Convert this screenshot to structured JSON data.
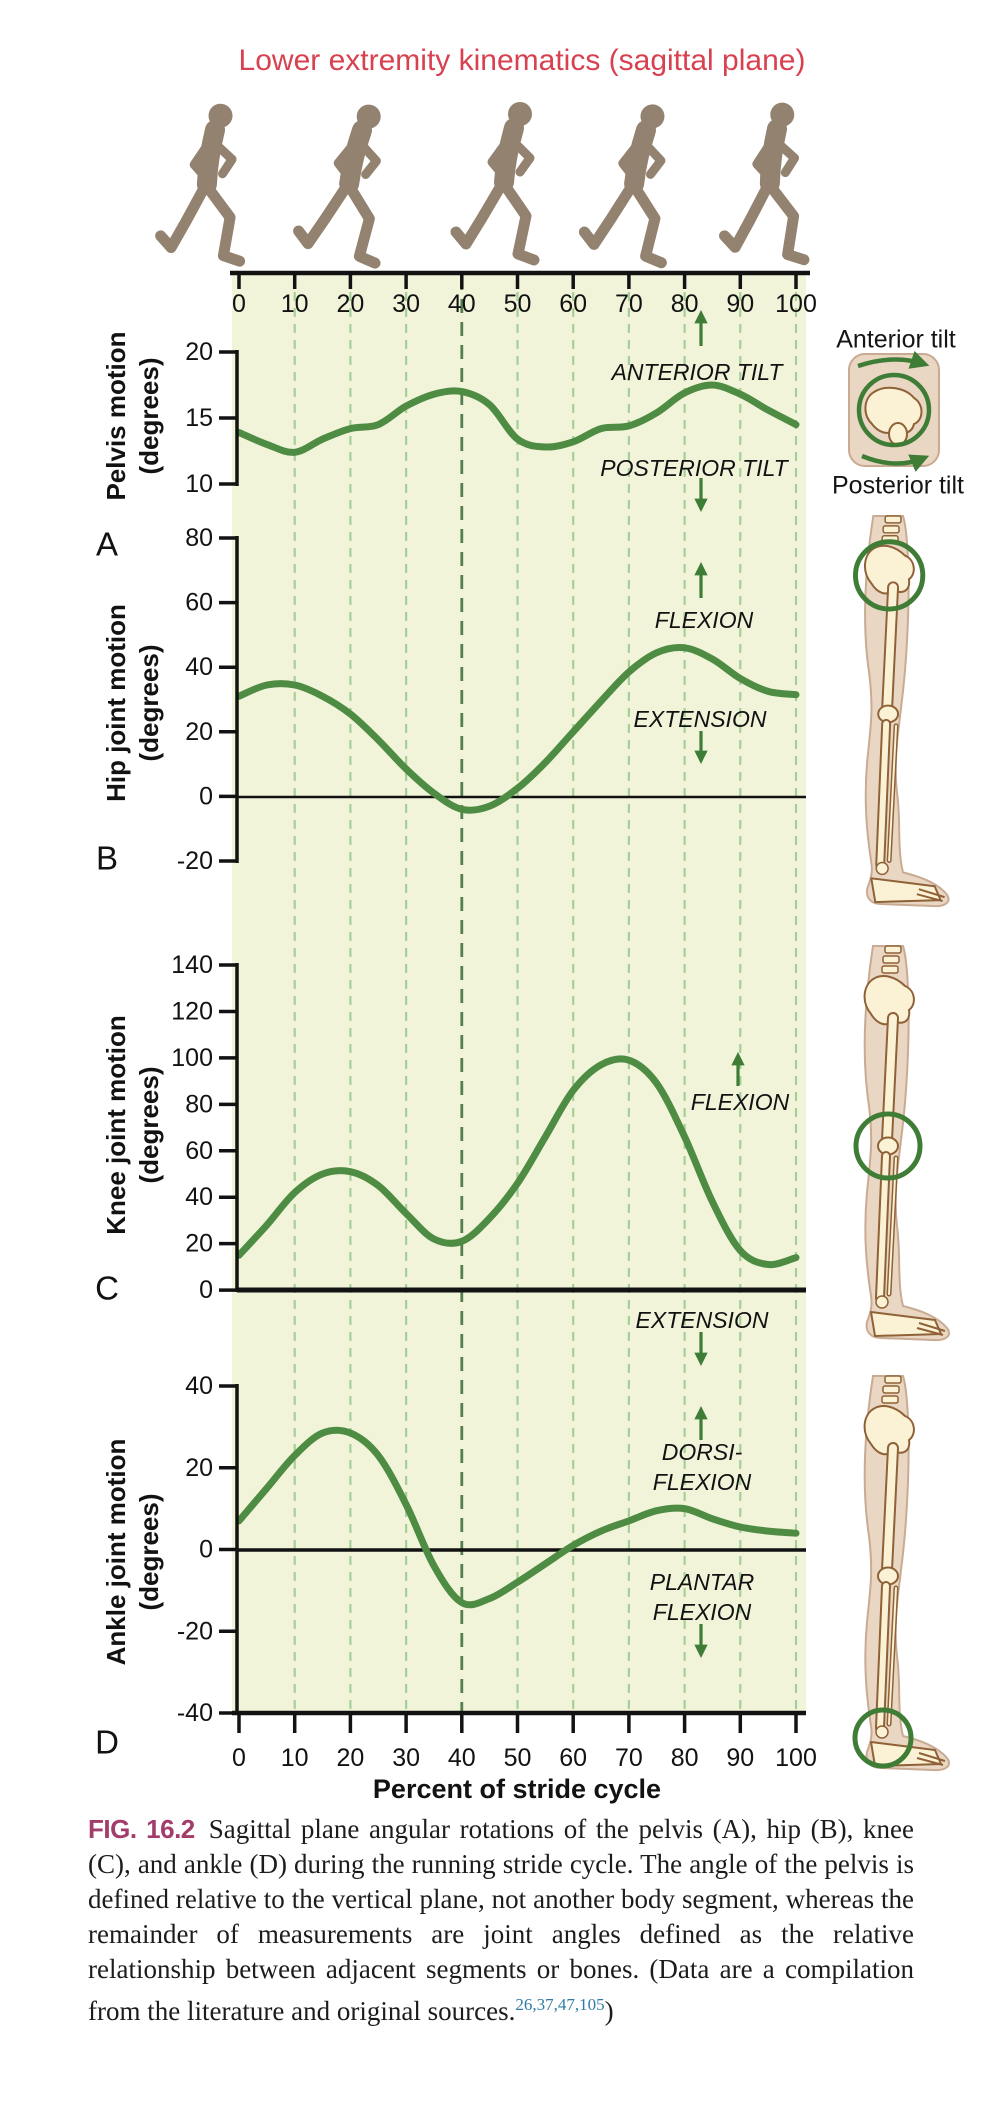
{
  "title": "Lower extremity kinematics (sagittal plane)",
  "x_axis": {
    "label": "Percent of stride cycle",
    "ticks": [
      0,
      10,
      20,
      30,
      40,
      50,
      60,
      70,
      80,
      90,
      100
    ]
  },
  "right_column": {
    "anterior_label": "Anterior tilt",
    "posterior_label": "Posterior tilt",
    "illustrations": [
      "pelvis-tilt-diagram",
      "leg-hip-circled",
      "leg-knee-circled",
      "leg-ankle-circled"
    ]
  },
  "caption": {
    "fig_label": "FIG. 16.2",
    "body": "Sagittal plane angular rotations of the pelvis (A), hip (B), knee (C), and ankle (D) during the running stride cycle. The angle of the pelvis is defined relative to the vertical plane, not another body segment, whereas the remainder of measurements are joint angles defined as the relative relationship between adjacent segments or bones. (Data are a compilation from the literature and original sources.",
    "references": "26,37,47,105",
    "close_paren": ")"
  },
  "colors": {
    "title_red": "#d8414f",
    "fig_label_magenta": "#a33b6b",
    "reference_blue": "#2f7ba6",
    "curve_green": "#4e8b43",
    "grid_light_green": "#a6cf97",
    "grid_dark_green": "#567f4e",
    "plot_background": "#f2f4da",
    "arrow_green": "#3f7d37",
    "skin_tone": "#e9d7c4",
    "bone_cream": "#fbf2d6",
    "bone_outline": "#8f6137",
    "runner_silhouette": "#93826f",
    "axis_black": "#121212"
  },
  "chart_data": [
    {
      "id": "pelvis",
      "type": "line",
      "panel_letter": "A",
      "y_label_lines": [
        "Pelvis motion",
        "(degrees)"
      ],
      "y_ticks": [
        20,
        15,
        10
      ],
      "ylim": [
        10,
        20
      ],
      "xlim": [
        0,
        100
      ],
      "x": [
        0,
        5,
        10,
        15,
        20,
        25,
        30,
        35,
        40,
        45,
        50,
        55,
        60,
        65,
        70,
        75,
        80,
        85,
        90,
        95,
        100
      ],
      "values": [
        13.9,
        13.0,
        12.4,
        13.4,
        14.2,
        14.5,
        15.9,
        16.8,
        17.0,
        16.0,
        13.4,
        12.8,
        13.2,
        14.2,
        14.4,
        15.4,
        16.9,
        17.5,
        16.8,
        15.6,
        14.5
      ],
      "annotations": [
        {
          "lines": [
            "ANTERIOR TILT"
          ],
          "direction": "up"
        },
        {
          "lines": [
            "POSTERIOR TILT"
          ],
          "direction": "down"
        }
      ]
    },
    {
      "id": "hip",
      "type": "line",
      "panel_letter": "B",
      "y_label_lines": [
        "Hip joint motion",
        "(degrees)"
      ],
      "y_ticks": [
        80,
        60,
        40,
        20,
        0,
        -20
      ],
      "ylim": [
        -20,
        80
      ],
      "xlim": [
        0,
        100
      ],
      "x": [
        0,
        5,
        10,
        15,
        20,
        25,
        30,
        35,
        40,
        45,
        50,
        55,
        60,
        65,
        70,
        75,
        80,
        85,
        90,
        95,
        100
      ],
      "values": [
        31,
        34.5,
        34.5,
        31,
        25.5,
        17.5,
        8.5,
        1,
        -4,
        -3,
        2.5,
        10.5,
        20,
        29.5,
        38.5,
        44.5,
        46,
        42.5,
        36.5,
        32.5,
        31.5
      ],
      "annotations": [
        {
          "lines": [
            "FLEXION"
          ],
          "direction": "up"
        },
        {
          "lines": [
            "EXTENSION"
          ],
          "direction": "down"
        }
      ]
    },
    {
      "id": "knee",
      "type": "line",
      "panel_letter": "C",
      "y_label_lines": [
        "Knee joint motion",
        "(degrees)"
      ],
      "y_ticks": [
        140,
        120,
        100,
        80,
        60,
        40,
        20,
        0
      ],
      "ylim": [
        0,
        140
      ],
      "xlim": [
        0,
        100
      ],
      "x": [
        0,
        5,
        10,
        15,
        20,
        25,
        30,
        35,
        40,
        45,
        50,
        55,
        60,
        65,
        70,
        75,
        80,
        85,
        90,
        95,
        100
      ],
      "values": [
        15,
        28,
        42,
        50,
        51,
        45,
        33,
        22,
        21,
        31,
        46,
        66,
        86,
        97,
        99,
        89,
        66,
        38,
        17,
        11,
        14
      ],
      "annotations": [
        {
          "lines": [
            "FLEXION"
          ],
          "direction": "up"
        },
        {
          "lines": [
            "EXTENSION"
          ],
          "direction": "down"
        }
      ]
    },
    {
      "id": "ankle",
      "type": "line",
      "panel_letter": "D",
      "y_label_lines": [
        "Ankle joint motion",
        "(degrees)"
      ],
      "y_ticks": [
        40,
        20,
        0,
        -20,
        -40
      ],
      "ylim": [
        -40,
        40
      ],
      "xlim": [
        0,
        100
      ],
      "x": [
        0,
        5,
        10,
        15,
        20,
        25,
        30,
        35,
        40,
        45,
        50,
        55,
        60,
        65,
        70,
        75,
        80,
        85,
        90,
        95,
        100
      ],
      "values": [
        7,
        15,
        23,
        28.5,
        28.5,
        23,
        11,
        -4,
        -13,
        -12,
        -8,
        -3.5,
        1,
        4.5,
        7,
        9.5,
        10,
        7.5,
        5.5,
        4.5,
        4
      ],
      "annotations": [
        {
          "lines": [
            "DORSI-",
            "FLEXION"
          ],
          "direction": "up"
        },
        {
          "lines": [
            "PLANTAR",
            "FLEXION"
          ],
          "direction": "down"
        }
      ]
    }
  ]
}
